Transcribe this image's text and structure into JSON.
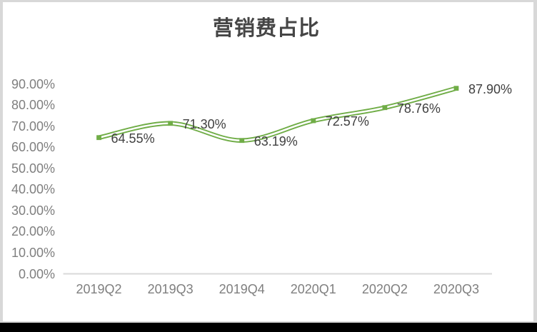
{
  "window": {
    "frame_color": "#d8d8d8",
    "bottom_bar_color": "#000000",
    "background": "#ffffff"
  },
  "chart_data": {
    "type": "line",
    "title": "营销费占比",
    "categories": [
      "2019Q2",
      "2019Q3",
      "2019Q4",
      "2020Q1",
      "2020Q2",
      "2020Q3"
    ],
    "values": [
      64.55,
      71.3,
      63.19,
      72.57,
      78.76,
      87.9
    ],
    "data_labels": [
      "64.55%",
      "71.30%",
      "63.19%",
      "72.57%",
      "78.76%",
      "87.90%"
    ],
    "y_ticks": [
      "0.00%",
      "10.00%",
      "20.00%",
      "30.00%",
      "40.00%",
      "50.00%",
      "60.00%",
      "70.00%",
      "80.00%",
      "90.00%"
    ],
    "y_tick_values": [
      0,
      10,
      20,
      30,
      40,
      50,
      60,
      70,
      80,
      90
    ],
    "ylim": [
      0,
      90
    ],
    "xlabel": "",
    "ylabel": "",
    "grid": false,
    "legend": "none",
    "smooth": true,
    "line_color": "#70AD47",
    "line_inner_color": "#ffffff",
    "marker": "square",
    "marker_color": "#70AD47",
    "axis_line_color": "#D9D9D9",
    "title_color": "#454545",
    "data_label_color": "#404040",
    "axis_label_color": "#7f7f7f"
  }
}
